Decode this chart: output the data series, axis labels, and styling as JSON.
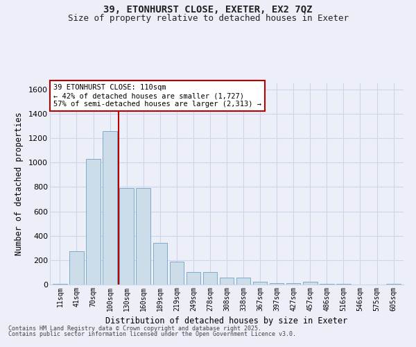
{
  "title1": "39, ETONHURST CLOSE, EXETER, EX2 7QZ",
  "title2": "Size of property relative to detached houses in Exeter",
  "xlabel": "Distribution of detached houses by size in Exeter",
  "ylabel": "Number of detached properties",
  "categories": [
    "11sqm",
    "41sqm",
    "70sqm",
    "100sqm",
    "130sqm",
    "160sqm",
    "189sqm",
    "219sqm",
    "249sqm",
    "278sqm",
    "308sqm",
    "338sqm",
    "367sqm",
    "397sqm",
    "427sqm",
    "457sqm",
    "486sqm",
    "516sqm",
    "546sqm",
    "575sqm",
    "605sqm"
  ],
  "values": [
    5,
    275,
    1030,
    1260,
    790,
    790,
    340,
    185,
    100,
    100,
    55,
    55,
    20,
    10,
    10,
    20,
    5,
    5,
    2,
    2,
    5
  ],
  "bar_color": "#ccdce8",
  "bar_edge_color": "#7aabcc",
  "grid_color": "#d0d4e8",
  "background_color": "#eceef8",
  "annotation_text": "39 ETONHURST CLOSE: 110sqm\n← 42% of detached houses are smaller (1,727)\n57% of semi-detached houses are larger (2,313) →",
  "vline_x": 3.5,
  "annotation_box_facecolor": "#ffffff",
  "annotation_box_edgecolor": "#bb0000",
  "ylim_max": 1650,
  "yticks": [
    0,
    200,
    400,
    600,
    800,
    1000,
    1200,
    1400,
    1600
  ],
  "footer1": "Contains HM Land Registry data © Crown copyright and database right 2025.",
  "footer2": "Contains public sector information licensed under the Open Government Licence v3.0."
}
